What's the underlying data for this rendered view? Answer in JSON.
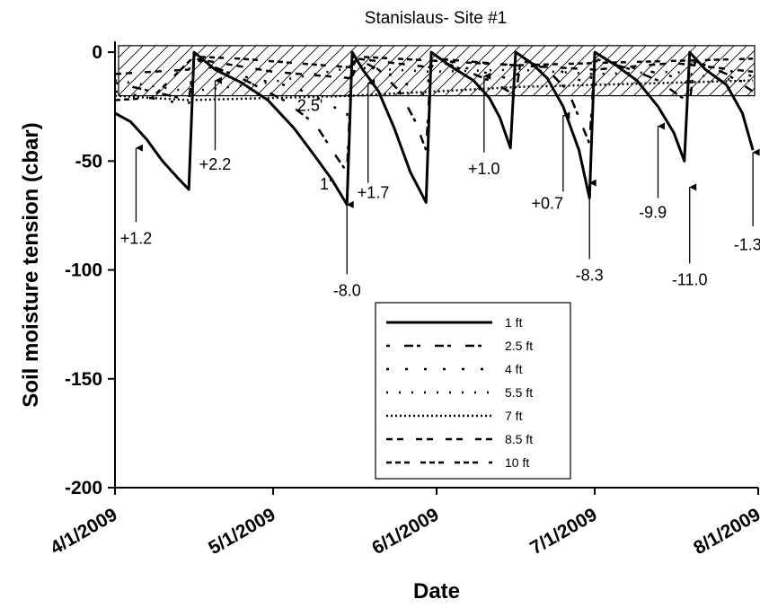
{
  "chart_data": {
    "type": "line",
    "title": "Stanislaus- Site #1",
    "xlabel": "Date",
    "ylabel": "Soil moisture tension (cbar)",
    "x_range": [
      "4/1/2009",
      "8/1/2009"
    ],
    "ylim": [
      -200,
      5
    ],
    "x_ticks": [
      "4/1/2009",
      "5/1/2009",
      "6/1/2009",
      "7/1/2009",
      "8/1/2009"
    ],
    "y_ticks": [
      0,
      -50,
      -100,
      -150,
      -200
    ],
    "target_band": [
      -20,
      3
    ],
    "legend_position": "bottom-center",
    "series": [
      {
        "name": "1 ft",
        "dash": "solid",
        "width": 3,
        "points": [
          [
            "4/1/2009",
            -28
          ],
          [
            "4/4/2009",
            -32
          ],
          [
            "4/7/2009",
            -40
          ],
          [
            "4/10/2009",
            -50
          ],
          [
            "4/13/2009",
            -58
          ],
          [
            "4/15/2009",
            -63
          ],
          [
            "4/16/2009",
            0
          ],
          [
            "4/20/2009",
            -8
          ],
          [
            "4/25/2009",
            -14
          ],
          [
            "4/30/2009",
            -22
          ],
          [
            "5/5/2009",
            -35
          ],
          [
            "5/9/2009",
            -48
          ],
          [
            "5/12/2009",
            -58
          ],
          [
            "5/14/2009",
            -66
          ],
          [
            "5/15/2009",
            -70
          ],
          [
            "5/16/2009",
            0
          ],
          [
            "5/18/2009",
            -8
          ],
          [
            "5/21/2009",
            -18
          ],
          [
            "5/24/2009",
            -35
          ],
          [
            "5/27/2009",
            -55
          ],
          [
            "5/30/2009",
            -69
          ],
          [
            "5/31/2009",
            0
          ],
          [
            "6/4/2009",
            -7
          ],
          [
            "6/8/2009",
            -13
          ],
          [
            "6/11/2009",
            -21
          ],
          [
            "6/13/2009",
            -30
          ],
          [
            "6/15/2009",
            -44
          ],
          [
            "6/16/2009",
            0
          ],
          [
            "6/19/2009",
            -5
          ],
          [
            "6/22/2009",
            -12
          ],
          [
            "6/25/2009",
            -25
          ],
          [
            "6/28/2009",
            -45
          ],
          [
            "6/30/2009",
            -67
          ],
          [
            "7/1/2009",
            0
          ],
          [
            "7/5/2009",
            -6
          ],
          [
            "7/9/2009",
            -13
          ],
          [
            "7/13/2009",
            -25
          ],
          [
            "7/16/2009",
            -37
          ],
          [
            "7/18/2009",
            -50
          ],
          [
            "7/19/2009",
            0
          ],
          [
            "7/22/2009",
            -8
          ],
          [
            "7/26/2009",
            -15
          ],
          [
            "7/29/2009",
            -28
          ],
          [
            "7/31/2009",
            -45
          ]
        ]
      },
      {
        "name": "2.5 ft",
        "dash": "4 16 10 4",
        "width": 2.5,
        "points": [
          [
            "4/1/2009",
            -14
          ],
          [
            "4/8/2009",
            -18
          ],
          [
            "4/15/2009",
            -22
          ],
          [
            "4/16/2009",
            -3
          ],
          [
            "4/25/2009",
            -12
          ],
          [
            "5/3/2009",
            -22
          ],
          [
            "5/9/2009",
            -33
          ],
          [
            "5/13/2009",
            -48
          ],
          [
            "5/15/2009",
            -55
          ],
          [
            "5/16/2009",
            -2
          ],
          [
            "5/21/2009",
            -8
          ],
          [
            "5/25/2009",
            -18
          ],
          [
            "5/28/2009",
            -32
          ],
          [
            "5/30/2009",
            -45
          ],
          [
            "5/31/2009",
            -3
          ],
          [
            "6/6/2009",
            -8
          ],
          [
            "6/12/2009",
            -14
          ],
          [
            "6/16/2009",
            -20
          ],
          [
            "6/17/2009",
            -3
          ],
          [
            "6/22/2009",
            -8
          ],
          [
            "6/26/2009",
            -18
          ],
          [
            "6/30/2009",
            -42
          ],
          [
            "7/1/2009",
            -3
          ],
          [
            "7/8/2009",
            -8
          ],
          [
            "7/13/2009",
            -13
          ],
          [
            "7/17/2009",
            -20
          ],
          [
            "7/19/2009",
            -23
          ],
          [
            "7/20/2009",
            -4
          ],
          [
            "7/26/2009",
            -10
          ],
          [
            "7/31/2009",
            -18
          ]
        ]
      },
      {
        "name": "4 ft",
        "dash": "3 18",
        "width": 2.5,
        "points": [
          [
            "4/1/2009",
            -18
          ],
          [
            "4/10/2009",
            -22
          ],
          [
            "4/15/2009",
            -24
          ],
          [
            "4/16/2009",
            -5
          ],
          [
            "4/25/2009",
            -11
          ],
          [
            "5/5/2009",
            -16
          ],
          [
            "5/12/2009",
            -24
          ],
          [
            "5/15/2009",
            -30
          ],
          [
            "5/16/2009",
            -4
          ],
          [
            "5/23/2009",
            -10
          ],
          [
            "5/30/2009",
            -20
          ],
          [
            "5/31/2009",
            -4
          ],
          [
            "6/8/2009",
            -8
          ],
          [
            "6/16/2009",
            -13
          ],
          [
            "6/17/2009",
            -4
          ],
          [
            "6/24/2009",
            -8
          ],
          [
            "6/30/2009",
            -15
          ],
          [
            "7/1/2009",
            -4
          ],
          [
            "7/10/2009",
            -8
          ],
          [
            "7/19/2009",
            -13
          ],
          [
            "7/20/2009",
            -5
          ],
          [
            "7/31/2009",
            -11
          ]
        ]
      },
      {
        "name": "5.5 ft",
        "dash": "2 12",
        "width": 2.5,
        "points": [
          [
            "4/1/2009",
            -13
          ],
          [
            "4/15/2009",
            -18
          ],
          [
            "4/30/2009",
            -14
          ],
          [
            "5/16/2009",
            -7
          ],
          [
            "5/31/2009",
            -9
          ],
          [
            "6/16/2009",
            -8
          ],
          [
            "7/1/2009",
            -10
          ],
          [
            "7/16/2009",
            -9
          ],
          [
            "7/31/2009",
            -14
          ]
        ]
      },
      {
        "name": "7 ft",
        "dash": "2 3",
        "width": 2.5,
        "points": [
          [
            "4/1/2009",
            -20
          ],
          [
            "4/15/2009",
            -22
          ],
          [
            "5/1/2009",
            -21
          ],
          [
            "5/16/2009",
            -20
          ],
          [
            "6/1/2009",
            -18
          ],
          [
            "6/16/2009",
            -16
          ],
          [
            "7/1/2009",
            -15
          ],
          [
            "7/16/2009",
            -14
          ],
          [
            "7/31/2009",
            -13
          ]
        ]
      },
      {
        "name": "8.5 ft",
        "dash": "7 5 7 14",
        "width": 2.5,
        "points": [
          [
            "4/1/2009",
            -10
          ],
          [
            "4/15/2009",
            -8
          ],
          [
            "4/16/2009",
            -3
          ],
          [
            "5/1/2009",
            -9
          ],
          [
            "5/16/2009",
            -12
          ],
          [
            "5/17/2009",
            -3
          ],
          [
            "5/31/2009",
            -7
          ],
          [
            "6/1/2009",
            -3
          ],
          [
            "6/16/2009",
            -6
          ],
          [
            "7/1/2009",
            -8
          ],
          [
            "7/16/2009",
            -5
          ],
          [
            "7/31/2009",
            -9
          ]
        ]
      },
      {
        "name": "10 ft",
        "dash": "6 4 6 4 6 12",
        "width": 2.5,
        "points": [
          [
            "4/1/2009",
            -22
          ],
          [
            "4/8/2009",
            -21
          ],
          [
            "4/16/2009",
            -2
          ],
          [
            "4/25/2009",
            -3
          ],
          [
            "5/5/2009",
            -5
          ],
          [
            "5/16/2009",
            -7
          ],
          [
            "5/17/2009",
            -2
          ],
          [
            "6/1/2009",
            -4
          ],
          [
            "6/16/2009",
            -6
          ],
          [
            "7/1/2009",
            -5
          ],
          [
            "7/16/2009",
            -4
          ],
          [
            "7/31/2009",
            -3
          ]
        ]
      }
    ],
    "annotations": [
      {
        "text": "+1.2",
        "label_at": [
          "4/5/2009",
          -88
        ],
        "arrow_from": [
          "4/5/2009",
          -78
        ],
        "arrow_to": [
          "4/5/2009",
          -44
        ]
      },
      {
        "text": "+2.2",
        "label_at": [
          "4/20/2009",
          -54
        ],
        "arrow_from": [
          "4/20/2009",
          -45
        ],
        "arrow_to": [
          "4/20/2009",
          -13
        ]
      },
      {
        "text": "2.5'",
        "label_at": [
          "5/8/2009",
          -27
        ]
      },
      {
        "text": "1'",
        "label_at": [
          "5/11/2009",
          -63
        ]
      },
      {
        "text": "-8.0",
        "label_at": [
          "5/15/2009",
          -112
        ],
        "arrow_from": [
          "5/15/2009",
          -102
        ],
        "arrow_to": [
          "5/15/2009",
          -70
        ]
      },
      {
        "text": "+1.7",
        "label_at": [
          "5/20/2009",
          -67
        ],
        "arrow_from": [
          "5/19/2009",
          -60
        ],
        "arrow_to": [
          "5/19/2009",
          -14
        ]
      },
      {
        "text": "+1.0",
        "label_at": [
          "6/10/2009",
          -56
        ],
        "arrow_from": [
          "6/10/2009",
          -46
        ],
        "arrow_to": [
          "6/10/2009",
          -11
        ]
      },
      {
        "text": "+0.7",
        "label_at": [
          "6/22/2009",
          -72
        ],
        "arrow_from": [
          "6/25/2009",
          -64
        ],
        "arrow_to": [
          "6/25/2009",
          -29
        ]
      },
      {
        "text": "-8.3",
        "label_at": [
          "6/30/2009",
          -105
        ],
        "arrow_from": [
          "6/30/2009",
          -95
        ],
        "arrow_to": [
          "6/30/2009",
          -60
        ]
      },
      {
        "text": "-9.9",
        "label_at": [
          "7/12/2009",
          -76
        ],
        "arrow_from": [
          "7/13/2009",
          -67
        ],
        "arrow_to": [
          "7/13/2009",
          -34
        ]
      },
      {
        "text": "-11.0",
        "label_at": [
          "7/19/2009",
          -107
        ],
        "arrow_from": [
          "7/19/2009",
          -97
        ],
        "arrow_to": [
          "7/19/2009",
          -62
        ]
      },
      {
        "text": "-1.3",
        "label_at": [
          "7/30/2009",
          -91
        ],
        "arrow_from": [
          "7/31/2009",
          -80
        ],
        "arrow_to": [
          "7/31/2009",
          -46
        ]
      }
    ]
  }
}
